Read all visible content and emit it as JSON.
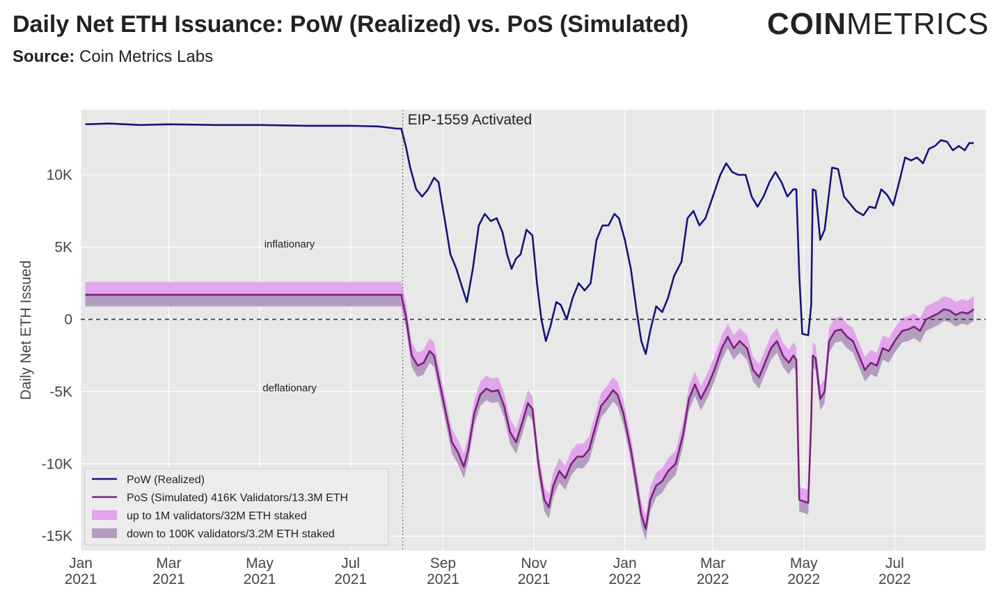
{
  "header": {
    "title": "Daily Net ETH Issuance: PoW (Realized) vs. PoS (Simulated)",
    "source_label": "Source:",
    "source_value": "Coin Metrics Labs",
    "logo_bold": "COIN",
    "logo_light": "METRICS"
  },
  "chart_data": {
    "type": "line",
    "title": "Daily Net ETH Issuance: PoW (Realized) vs. PoS (Simulated)",
    "ylabel": "Daily Net ETH Issued",
    "xlabel": "",
    "ylim": [
      -16000,
      14500
    ],
    "xlim": [
      "2021-01-01",
      "2022-08-31"
    ],
    "grid": true,
    "legend_position": "bottom-left",
    "y_ticks": [
      {
        "value": 10000,
        "label": "10K"
      },
      {
        "value": 5000,
        "label": "5K"
      },
      {
        "value": 0,
        "label": "0"
      },
      {
        "value": -5000,
        "label": "-5K"
      },
      {
        "value": -10000,
        "label": "-10K"
      },
      {
        "value": -15000,
        "label": "-15K"
      }
    ],
    "x_ticks": [
      {
        "date": "2021-01-01",
        "label1": "Jan",
        "label2": "2021"
      },
      {
        "date": "2021-03-01",
        "label1": "Mar",
        "label2": "2021"
      },
      {
        "date": "2021-05-01",
        "label1": "May",
        "label2": "2021"
      },
      {
        "date": "2021-07-01",
        "label1": "Jul",
        "label2": "2021"
      },
      {
        "date": "2021-09-01",
        "label1": "Sep",
        "label2": "2021"
      },
      {
        "date": "2021-11-01",
        "label1": "Nov",
        "label2": "2021"
      },
      {
        "date": "2022-01-01",
        "label1": "Jan",
        "label2": "2022"
      },
      {
        "date": "2022-03-01",
        "label1": "Mar",
        "label2": "2022"
      },
      {
        "date": "2022-05-01",
        "label1": "May",
        "label2": "2022"
      },
      {
        "date": "2022-07-01",
        "label1": "Jul",
        "label2": "2022"
      }
    ],
    "annotations": {
      "eip_label": "EIP-1559 Activated",
      "eip_date": "2021-08-05",
      "inflationary": "inflationary",
      "deflationary": "deflationary"
    },
    "colors": {
      "pow": "#14147a",
      "pos": "#7b1f7e",
      "band_upper": "#e1a6ea",
      "band_lower": "#b49cc0",
      "plot_bg": "#e8e8e8",
      "grid": "#ffffff"
    },
    "series": [
      {
        "name": "PoW (Realized)",
        "points": [
          [
            "2021-01-04",
            13500
          ],
          [
            "2021-01-20",
            13550
          ],
          [
            "2021-02-10",
            13450
          ],
          [
            "2021-03-01",
            13500
          ],
          [
            "2021-04-01",
            13450
          ],
          [
            "2021-05-01",
            13450
          ],
          [
            "2021-06-01",
            13400
          ],
          [
            "2021-07-01",
            13400
          ],
          [
            "2021-07-20",
            13350
          ],
          [
            "2021-08-01",
            13200
          ],
          [
            "2021-08-04",
            13200
          ],
          [
            "2021-08-07",
            12000
          ],
          [
            "2021-08-10",
            10500
          ],
          [
            "2021-08-14",
            9000
          ],
          [
            "2021-08-18",
            8500
          ],
          [
            "2021-08-22",
            9000
          ],
          [
            "2021-08-26",
            9800
          ],
          [
            "2021-08-29",
            9500
          ],
          [
            "2021-09-02",
            7000
          ],
          [
            "2021-09-06",
            4500
          ],
          [
            "2021-09-10",
            3500
          ],
          [
            "2021-09-13",
            2500
          ],
          [
            "2021-09-17",
            1200
          ],
          [
            "2021-09-21",
            3500
          ],
          [
            "2021-09-25",
            6500
          ],
          [
            "2021-09-29",
            7300
          ],
          [
            "2021-10-03",
            6800
          ],
          [
            "2021-10-07",
            7000
          ],
          [
            "2021-10-11",
            6000
          ],
          [
            "2021-10-14",
            4500
          ],
          [
            "2021-10-17",
            3500
          ],
          [
            "2021-10-20",
            4200
          ],
          [
            "2021-10-23",
            4500
          ],
          [
            "2021-10-27",
            6200
          ],
          [
            "2021-10-31",
            5800
          ],
          [
            "2021-11-03",
            2500
          ],
          [
            "2021-11-06",
            0
          ],
          [
            "2021-11-09",
            -1500
          ],
          [
            "2021-11-12",
            -500
          ],
          [
            "2021-11-16",
            1200
          ],
          [
            "2021-11-19",
            1000
          ],
          [
            "2021-11-23",
            0
          ],
          [
            "2021-11-27",
            1500
          ],
          [
            "2021-12-01",
            2500
          ],
          [
            "2021-12-05",
            2000
          ],
          [
            "2021-12-09",
            2500
          ],
          [
            "2021-12-13",
            5500
          ],
          [
            "2021-12-17",
            6500
          ],
          [
            "2021-12-21",
            6500
          ],
          [
            "2021-12-25",
            7300
          ],
          [
            "2021-12-28",
            7000
          ],
          [
            "2022-01-01",
            5500
          ],
          [
            "2022-01-05",
            3500
          ],
          [
            "2022-01-09",
            500
          ],
          [
            "2022-01-12",
            -1500
          ],
          [
            "2022-01-15",
            -2400
          ],
          [
            "2022-01-18",
            -800
          ],
          [
            "2022-01-22",
            900
          ],
          [
            "2022-01-26",
            500
          ],
          [
            "2022-01-30",
            1500
          ],
          [
            "2022-02-03",
            3000
          ],
          [
            "2022-02-08",
            4000
          ],
          [
            "2022-02-12",
            7000
          ],
          [
            "2022-02-16",
            7500
          ],
          [
            "2022-02-20",
            6500
          ],
          [
            "2022-02-24",
            7000
          ],
          [
            "2022-03-01",
            8500
          ],
          [
            "2022-03-06",
            10000
          ],
          [
            "2022-03-10",
            10800
          ],
          [
            "2022-03-14",
            10200
          ],
          [
            "2022-03-18",
            10000
          ],
          [
            "2022-03-23",
            10000
          ],
          [
            "2022-03-27",
            8500
          ],
          [
            "2022-03-31",
            7800
          ],
          [
            "2022-04-04",
            8500
          ],
          [
            "2022-04-08",
            9500
          ],
          [
            "2022-04-12",
            10200
          ],
          [
            "2022-04-16",
            9500
          ],
          [
            "2022-04-20",
            8500
          ],
          [
            "2022-04-24",
            9000
          ],
          [
            "2022-04-26",
            9000
          ],
          [
            "2022-04-28",
            3000
          ],
          [
            "2022-04-30",
            -1000
          ],
          [
            "2022-05-04",
            -1100
          ],
          [
            "2022-05-06",
            1000
          ],
          [
            "2022-05-07",
            9000
          ],
          [
            "2022-05-09",
            8900
          ],
          [
            "2022-05-12",
            5500
          ],
          [
            "2022-05-15",
            6200
          ],
          [
            "2022-05-20",
            10500
          ],
          [
            "2022-05-24",
            10400
          ],
          [
            "2022-05-28",
            8500
          ],
          [
            "2022-06-01",
            8000
          ],
          [
            "2022-06-05",
            7500
          ],
          [
            "2022-06-10",
            7200
          ],
          [
            "2022-06-14",
            7800
          ],
          [
            "2022-06-18",
            7700
          ],
          [
            "2022-06-22",
            9000
          ],
          [
            "2022-06-26",
            8600
          ],
          [
            "2022-06-30",
            7900
          ],
          [
            "2022-07-04",
            9500
          ],
          [
            "2022-07-08",
            11200
          ],
          [
            "2022-07-12",
            11000
          ],
          [
            "2022-07-16",
            11200
          ],
          [
            "2022-07-20",
            10800
          ],
          [
            "2022-07-24",
            11800
          ],
          [
            "2022-07-28",
            12000
          ],
          [
            "2022-08-01",
            12400
          ],
          [
            "2022-08-05",
            12300
          ],
          [
            "2022-08-09",
            11700
          ],
          [
            "2022-08-13",
            12000
          ],
          [
            "2022-08-17",
            11700
          ],
          [
            "2022-08-20",
            12200
          ],
          [
            "2022-08-23",
            12200
          ]
        ]
      },
      {
        "name": "PoS (Simulated) 416K Validators/13.3M ETH",
        "points": [
          [
            "2021-01-04",
            1700
          ],
          [
            "2021-04-01",
            1700
          ],
          [
            "2021-07-01",
            1700
          ],
          [
            "2021-08-04",
            1700
          ],
          [
            "2021-08-07",
            300
          ],
          [
            "2021-08-11",
            -2500
          ],
          [
            "2021-08-15",
            -3200
          ],
          [
            "2021-08-19",
            -3000
          ],
          [
            "2021-08-23",
            -2200
          ],
          [
            "2021-08-26",
            -2500
          ],
          [
            "2021-08-30",
            -4500
          ],
          [
            "2021-09-03",
            -6500
          ],
          [
            "2021-09-07",
            -8500
          ],
          [
            "2021-09-11",
            -9200
          ],
          [
            "2021-09-15",
            -10200
          ],
          [
            "2021-09-18",
            -9000
          ],
          [
            "2021-09-22",
            -6500
          ],
          [
            "2021-09-26",
            -5200
          ],
          [
            "2021-09-30",
            -4800
          ],
          [
            "2021-10-04",
            -5000
          ],
          [
            "2021-10-08",
            -4900
          ],
          [
            "2021-10-12",
            -6000
          ],
          [
            "2021-10-16",
            -7800
          ],
          [
            "2021-10-20",
            -8500
          ],
          [
            "2021-10-24",
            -7200
          ],
          [
            "2021-10-28",
            -5800
          ],
          [
            "2021-10-31",
            -6200
          ],
          [
            "2021-11-04",
            -10000
          ],
          [
            "2021-11-08",
            -12500
          ],
          [
            "2021-11-11",
            -13000
          ],
          [
            "2021-11-14",
            -11500
          ],
          [
            "2021-11-18",
            -10500
          ],
          [
            "2021-11-22",
            -11000
          ],
          [
            "2021-11-26",
            -10000
          ],
          [
            "2021-11-30",
            -9500
          ],
          [
            "2021-12-04",
            -9500
          ],
          [
            "2021-12-08",
            -9000
          ],
          [
            "2021-12-12",
            -7500
          ],
          [
            "2021-12-16",
            -6000
          ],
          [
            "2021-12-20",
            -5500
          ],
          [
            "2021-12-24",
            -4900
          ],
          [
            "2021-12-27",
            -5200
          ],
          [
            "2021-12-31",
            -6500
          ],
          [
            "2022-01-05",
            -9000
          ],
          [
            "2022-01-09",
            -11500
          ],
          [
            "2022-01-12",
            -13500
          ],
          [
            "2022-01-15",
            -14500
          ],
          [
            "2022-01-18",
            -12500
          ],
          [
            "2022-01-22",
            -11500
          ],
          [
            "2022-01-26",
            -11200
          ],
          [
            "2022-01-30",
            -10500
          ],
          [
            "2022-02-04",
            -10000
          ],
          [
            "2022-02-09",
            -8000
          ],
          [
            "2022-02-13",
            -5500
          ],
          [
            "2022-02-17",
            -4500
          ],
          [
            "2022-02-21",
            -5500
          ],
          [
            "2022-02-26",
            -4500
          ],
          [
            "2022-03-02",
            -3500
          ],
          [
            "2022-03-07",
            -2000
          ],
          [
            "2022-03-11",
            -1200
          ],
          [
            "2022-03-15",
            -2000
          ],
          [
            "2022-03-19",
            -1500
          ],
          [
            "2022-03-24",
            -2000
          ],
          [
            "2022-03-28",
            -3500
          ],
          [
            "2022-04-01",
            -4000
          ],
          [
            "2022-04-05",
            -3000
          ],
          [
            "2022-04-09",
            -2000
          ],
          [
            "2022-04-13",
            -1500
          ],
          [
            "2022-04-17",
            -2500
          ],
          [
            "2022-04-21",
            -3000
          ],
          [
            "2022-04-24",
            -2500
          ],
          [
            "2022-04-26",
            -2800
          ],
          [
            "2022-04-28",
            -12500
          ],
          [
            "2022-05-04",
            -12700
          ],
          [
            "2022-05-06",
            -7000
          ],
          [
            "2022-05-07",
            -2500
          ],
          [
            "2022-05-09",
            -2700
          ],
          [
            "2022-05-12",
            -5500
          ],
          [
            "2022-05-15",
            -5000
          ],
          [
            "2022-05-18",
            -1500
          ],
          [
            "2022-05-22",
            -800
          ],
          [
            "2022-05-26",
            -700
          ],
          [
            "2022-05-30",
            -1200
          ],
          [
            "2022-06-03",
            -1500
          ],
          [
            "2022-06-07",
            -2500
          ],
          [
            "2022-06-11",
            -3500
          ],
          [
            "2022-06-15",
            -3000
          ],
          [
            "2022-06-19",
            -3200
          ],
          [
            "2022-06-23",
            -2000
          ],
          [
            "2022-06-27",
            -2200
          ],
          [
            "2022-07-01",
            -1500
          ],
          [
            "2022-07-06",
            -800
          ],
          [
            "2022-07-10",
            -700
          ],
          [
            "2022-07-14",
            -500
          ],
          [
            "2022-07-18",
            -800
          ],
          [
            "2022-07-22",
            0
          ],
          [
            "2022-07-26",
            200
          ],
          [
            "2022-07-30",
            400
          ],
          [
            "2022-08-03",
            700
          ],
          [
            "2022-08-07",
            600
          ],
          [
            "2022-08-11",
            300
          ],
          [
            "2022-08-15",
            500
          ],
          [
            "2022-08-19",
            400
          ],
          [
            "2022-08-23",
            700
          ]
        ]
      },
      {
        "name": "up to 1M validators/32M ETH staked",
        "type": "band",
        "relative_to": "PoS (Simulated) 416K Validators/13.3M ETH",
        "offset": 900
      },
      {
        "name": "down to 100K validators/3.2M ETH staked",
        "type": "band",
        "relative_to": "PoS (Simulated) 416K Validators/13.3M ETH",
        "offset": -800
      }
    ]
  }
}
